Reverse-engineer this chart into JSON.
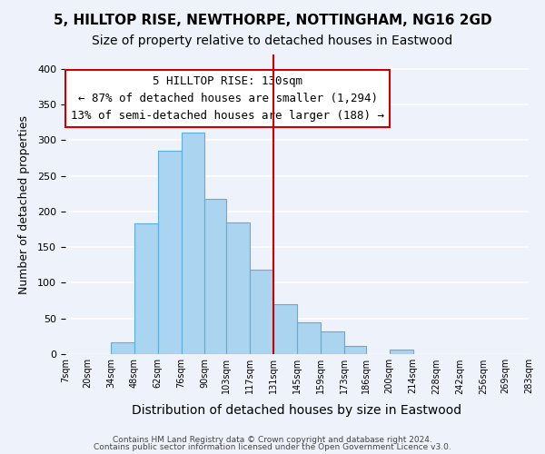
{
  "title": "5, HILLTOP RISE, NEWTHORPE, NOTTINGHAM, NG16 2GD",
  "subtitle": "Size of property relative to detached houses in Eastwood",
  "xlabel": "Distribution of detached houses by size in Eastwood",
  "ylabel": "Number of detached properties",
  "bin_edges": [
    7,
    20,
    34,
    48,
    62,
    76,
    90,
    103,
    117,
    131,
    145,
    159,
    173,
    186,
    200,
    214,
    228,
    242,
    256,
    269,
    283
  ],
  "bar_heights": [
    0,
    0,
    17,
    183,
    285,
    310,
    218,
    185,
    118,
    70,
    45,
    32,
    11,
    0,
    6,
    0,
    0,
    0,
    0,
    0
  ],
  "bar_color": "#aad4f0",
  "bar_edge_color": "#5aaee0",
  "vline_x": 131,
  "vline_color": "#cc0000",
  "ylim": [
    0,
    420
  ],
  "yticks": [
    0,
    50,
    100,
    150,
    200,
    250,
    300,
    350,
    400
  ],
  "annotation_text": "5 HILLTOP RISE: 130sqm\n← 87% of detached houses are smaller (1,294)\n13% of semi-detached houses are larger (188) →",
  "annotation_box_edgecolor": "#cc0000",
  "footnote1": "Contains HM Land Registry data © Crown copyright and database right 2024.",
  "footnote2": "Contains public sector information licensed under the Open Government Licence v3.0.",
  "title_fontsize": 11,
  "subtitle_fontsize": 10,
  "xlabel_fontsize": 10,
  "ylabel_fontsize": 9,
  "annotation_fontsize": 9,
  "tick_labels": [
    "7sqm",
    "20sqm",
    "34sqm",
    "48sqm",
    "62sqm",
    "76sqm",
    "90sqm",
    "103sqm",
    "117sqm",
    "131sqm",
    "145sqm",
    "159sqm",
    "173sqm",
    "186sqm",
    "200sqm",
    "214sqm",
    "228sqm",
    "242sqm",
    "256sqm",
    "269sqm",
    "283sqm"
  ],
  "background_color": "#eef2fb",
  "grid_color": "#ffffff"
}
